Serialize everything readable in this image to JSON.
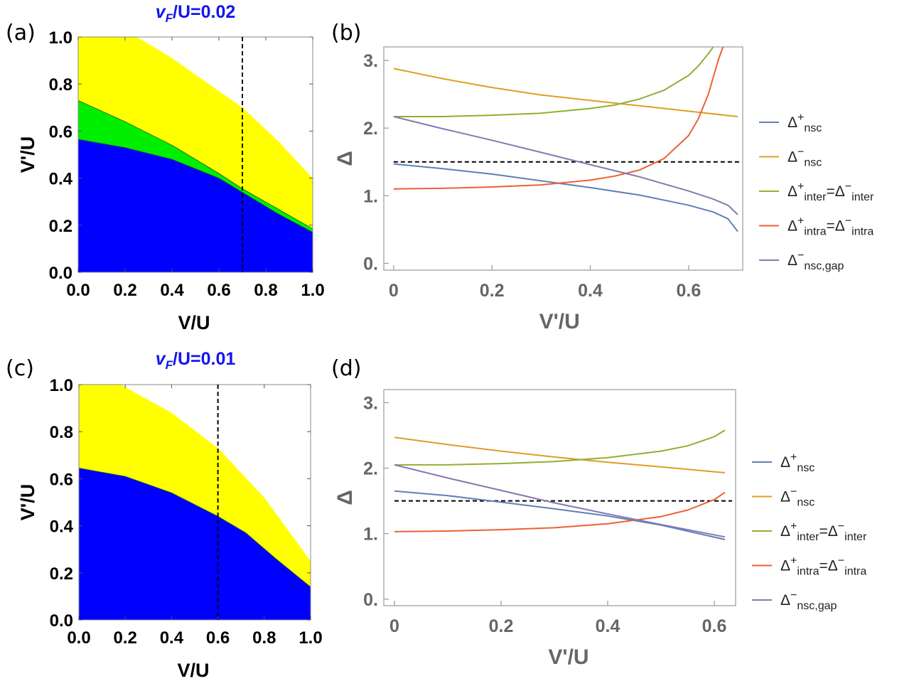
{
  "chart_data": [
    {
      "panel": "(a)",
      "type": "area",
      "title": "v_F/U=0.02",
      "title_parts": [
        "v",
        "F",
        "/U=0.02"
      ],
      "xlabel": "V/U",
      "ylabel": "V'/U",
      "xlim": [
        0,
        1
      ],
      "ylim": [
        0,
        1
      ],
      "xticks": [
        "0.0",
        "0.2",
        "0.4",
        "0.6",
        "0.8",
        "1.0"
      ],
      "yticks": [
        "0.0",
        "0.2",
        "0.4",
        "0.6",
        "0.8",
        "1.0"
      ],
      "regions": [
        {
          "color": "#ffff00",
          "upper": [
            [
              0,
              1.0
            ],
            [
              0.25,
              1.0
            ],
            [
              0.4,
              0.91
            ],
            [
              0.6,
              0.77
            ],
            [
              0.7,
              0.7
            ],
            [
              0.85,
              0.56
            ],
            [
              1.0,
              0.4
            ]
          ]
        },
        {
          "color": "#00ee00",
          "upper": [
            [
              0,
              0.73
            ],
            [
              0.2,
              0.64
            ],
            [
              0.4,
              0.54
            ],
            [
              0.6,
              0.42
            ],
            [
              0.7,
              0.355
            ],
            [
              0.85,
              0.27
            ],
            [
              1.0,
              0.185
            ]
          ]
        },
        {
          "color": "#0000ff",
          "upper": [
            [
              0,
              0.565
            ],
            [
              0.2,
              0.53
            ],
            [
              0.4,
              0.48
            ],
            [
              0.6,
              0.4
            ],
            [
              0.7,
              0.34
            ],
            [
              0.85,
              0.25
            ],
            [
              1.0,
              0.17
            ]
          ]
        }
      ],
      "vline": 0.7
    },
    {
      "panel": "(b)",
      "type": "line",
      "xlabel": "V'/U",
      "ylabel": "Δ",
      "xlim": [
        -0.02,
        0.71
      ],
      "ylim": [
        -0.1,
        3.2
      ],
      "xticks": [
        0,
        0.2,
        0.4,
        0.6
      ],
      "xtick_labels": [
        "0",
        "0.2",
        "0.4",
        "0.6"
      ],
      "yticks": [
        0,
        1,
        2,
        3
      ],
      "ytick_labels": [
        "0.",
        "1.",
        "2.",
        "3."
      ],
      "hline": 1.5,
      "series": [
        {
          "color": "#5e81b5",
          "x": [
            0,
            0.1,
            0.2,
            0.3,
            0.4,
            0.5,
            0.6,
            0.65,
            0.68,
            0.7
          ],
          "y": [
            1.47,
            1.4,
            1.32,
            1.22,
            1.12,
            1.01,
            0.86,
            0.76,
            0.66,
            0.47
          ]
        },
        {
          "color": "#e19c24",
          "x": [
            0,
            0.1,
            0.2,
            0.3,
            0.4,
            0.5,
            0.6,
            0.7
          ],
          "y": [
            2.88,
            2.73,
            2.6,
            2.49,
            2.41,
            2.33,
            2.25,
            2.17
          ]
        },
        {
          "color": "#8fb032",
          "x": [
            0,
            0.1,
            0.2,
            0.3,
            0.4,
            0.45,
            0.5,
            0.55,
            0.6,
            0.62,
            0.64,
            0.65
          ],
          "y": [
            2.17,
            2.17,
            2.19,
            2.22,
            2.29,
            2.34,
            2.43,
            2.56,
            2.78,
            2.92,
            3.1,
            3.2
          ]
        },
        {
          "color": "#eb6235",
          "x": [
            0,
            0.1,
            0.2,
            0.3,
            0.4,
            0.45,
            0.5,
            0.55,
            0.6,
            0.62,
            0.64,
            0.66,
            0.67
          ],
          "y": [
            1.1,
            1.11,
            1.13,
            1.16,
            1.23,
            1.29,
            1.38,
            1.55,
            1.89,
            2.14,
            2.5,
            3.0,
            3.2
          ]
        },
        {
          "color": "#8778b3",
          "x": [
            0,
            0.1,
            0.2,
            0.3,
            0.4,
            0.5,
            0.6,
            0.65,
            0.68,
            0.7
          ],
          "y": [
            2.17,
            1.99,
            1.82,
            1.64,
            1.46,
            1.28,
            1.07,
            0.95,
            0.86,
            0.72
          ]
        }
      ],
      "legend": [
        {
          "base": "Δ",
          "sup": "+",
          "sub": "nsc",
          "color": "#5e81b5"
        },
        {
          "base": "Δ",
          "sup": "−",
          "sub": "nsc",
          "color": "#e19c24"
        },
        {
          "base": "Δ",
          "sup": "+",
          "sub": "inter",
          "eq_base": "=Δ",
          "sup2": "−",
          "sub2": "inter",
          "color": "#8fb032"
        },
        {
          "base": "Δ",
          "sup": "+",
          "sub": "intra",
          "eq_base": "=Δ",
          "sup2": "−",
          "sub2": "intra",
          "color": "#eb6235"
        },
        {
          "base": "Δ",
          "sup": "−",
          "sub": "nsc,gap",
          "color": "#8778b3"
        }
      ]
    },
    {
      "panel": "(c)",
      "type": "area",
      "title": "v_F/U=0.01",
      "title_parts": [
        "v",
        "F",
        "/U=0.01"
      ],
      "xlabel": "V/U",
      "ylabel": "V'/U",
      "xlim": [
        0,
        1
      ],
      "ylim": [
        0,
        1
      ],
      "xticks": [
        "0.0",
        "0.2",
        "0.4",
        "0.6",
        "0.8",
        "1.0"
      ],
      "yticks": [
        "0.0",
        "0.2",
        "0.4",
        "0.6",
        "0.8",
        "1.0"
      ],
      "regions": [
        {
          "color": "#ffff00",
          "upper": [
            [
              0,
              1.0
            ],
            [
              0.18,
              1.0
            ],
            [
              0.4,
              0.88
            ],
            [
              0.6,
              0.73
            ],
            [
              0.8,
              0.52
            ],
            [
              1.0,
              0.25
            ]
          ]
        },
        {
          "color": "#0000ff",
          "upper": [
            [
              0,
              0.645
            ],
            [
              0.2,
              0.61
            ],
            [
              0.4,
              0.54
            ],
            [
              0.6,
              0.44
            ],
            [
              0.72,
              0.37
            ],
            [
              0.85,
              0.26
            ],
            [
              1.0,
              0.14
            ]
          ]
        }
      ],
      "vline": 0.6
    },
    {
      "panel": "(d)",
      "type": "line",
      "xlabel": "V'/U",
      "ylabel": "Δ",
      "xlim": [
        -0.02,
        0.64
      ],
      "ylim": [
        -0.1,
        3.2
      ],
      "xticks": [
        0,
        0.2,
        0.4,
        0.6
      ],
      "xtick_labels": [
        "0",
        "0.2",
        "0.4",
        "0.6"
      ],
      "yticks": [
        0,
        1,
        2,
        3
      ],
      "ytick_labels": [
        "0.",
        "1.",
        "2.",
        "3."
      ],
      "hline": 1.5,
      "series": [
        {
          "color": "#5e81b5",
          "x": [
            0,
            0.1,
            0.2,
            0.3,
            0.4,
            0.5,
            0.62
          ],
          "y": [
            1.65,
            1.58,
            1.48,
            1.38,
            1.27,
            1.13,
            0.91
          ]
        },
        {
          "color": "#e19c24",
          "x": [
            0,
            0.1,
            0.2,
            0.3,
            0.4,
            0.5,
            0.62
          ],
          "y": [
            2.47,
            2.36,
            2.26,
            2.17,
            2.09,
            2.02,
            1.93
          ]
        },
        {
          "color": "#8fb032",
          "x": [
            0,
            0.1,
            0.2,
            0.3,
            0.4,
            0.5,
            0.55,
            0.6,
            0.62
          ],
          "y": [
            2.05,
            2.05,
            2.07,
            2.1,
            2.16,
            2.26,
            2.34,
            2.48,
            2.58
          ]
        },
        {
          "color": "#eb6235",
          "x": [
            0,
            0.1,
            0.2,
            0.3,
            0.4,
            0.5,
            0.55,
            0.6,
            0.62
          ],
          "y": [
            1.03,
            1.04,
            1.06,
            1.09,
            1.15,
            1.26,
            1.36,
            1.52,
            1.63
          ]
        },
        {
          "color": "#8778b3",
          "x": [
            0,
            0.1,
            0.2,
            0.3,
            0.4,
            0.5,
            0.62
          ],
          "y": [
            2.05,
            1.85,
            1.66,
            1.47,
            1.3,
            1.14,
            0.95
          ]
        }
      ],
      "legend": [
        {
          "base": "Δ",
          "sup": "+",
          "sub": "nsc",
          "color": "#5e81b5"
        },
        {
          "base": "Δ",
          "sup": "−",
          "sub": "nsc",
          "color": "#e19c24"
        },
        {
          "base": "Δ",
          "sup": "+",
          "sub": "inter",
          "eq_base": "=Δ",
          "sup2": "−",
          "sub2": "inter",
          "color": "#8fb032"
        },
        {
          "base": "Δ",
          "sup": "+",
          "sub": "intra",
          "eq_base": "=Δ",
          "sup2": "−",
          "sub2": "intra",
          "color": "#eb6235"
        },
        {
          "base": "Δ",
          "sup": "−",
          "sub": "nsc,gap",
          "color": "#8778b3"
        }
      ]
    }
  ]
}
